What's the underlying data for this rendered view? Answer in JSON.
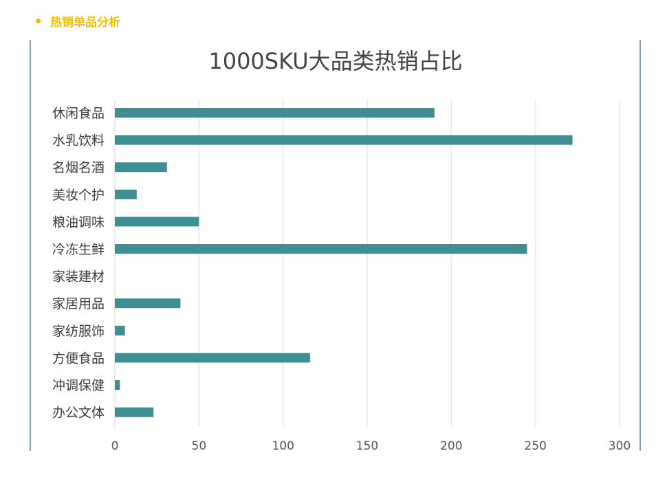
{
  "section": {
    "title": "热销单品分析"
  },
  "chart_data": {
    "type": "bar",
    "orientation": "horizontal",
    "title": "1000SKU大品类热销占比",
    "categories": [
      "休闲食品",
      "水乳饮料",
      "名烟名酒",
      "美妆个护",
      "粮油调味",
      "冷冻生鲜",
      "家装建材",
      "家居用品",
      "家纺服饰",
      "方便食品",
      "冲调保健",
      "办公文体"
    ],
    "values": [
      190,
      272,
      31,
      13,
      50,
      245,
      0,
      39,
      6,
      116,
      3,
      23
    ],
    "xlim": [
      0,
      300
    ],
    "xticks": [
      0,
      50,
      100,
      150,
      200,
      250,
      300
    ],
    "grid": true,
    "bar_color": "#3f8e92",
    "grid_color": "#ececec"
  }
}
